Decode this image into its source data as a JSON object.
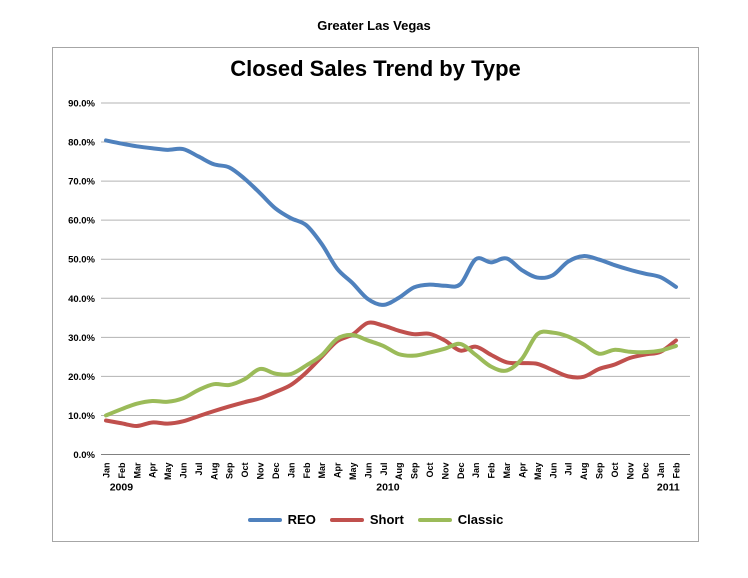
{
  "page": {
    "header": "Greater Las Vegas"
  },
  "chart": {
    "title": "Closed Sales Trend by Type",
    "legend": [
      {
        "label": "REO",
        "color": "#4F81BD"
      },
      {
        "label": "Short",
        "color": "#C0504D"
      },
      {
        "label": "Classic",
        "color": "#9BBB59"
      }
    ]
  },
  "chart_data": {
    "type": "line",
    "title": "Closed Sales Trend by Type",
    "subtitle": "Greater Las Vegas",
    "smoothed": true,
    "grid": true,
    "legend_position": "bottom",
    "ylabel": "",
    "xlabel": "",
    "ylim": [
      0,
      90
    ],
    "y_ticks": [
      "0.0%",
      "10.0%",
      "20.0%",
      "30.0%",
      "40.0%",
      "50.0%",
      "60.0%",
      "70.0%",
      "80.0%",
      "90.0%"
    ],
    "categories": [
      "Jan",
      "Feb",
      "Mar",
      "Apr",
      "May",
      "Jun",
      "Jul",
      "Aug",
      "Sep",
      "Oct",
      "Nov",
      "Dec",
      "Jan",
      "Feb",
      "Mar",
      "Apr",
      "May",
      "Jun",
      "Jul",
      "Aug",
      "Sep",
      "Oct",
      "Nov",
      "Dec",
      "Jan",
      "Feb",
      "Mar",
      "Apr",
      "May",
      "Jun",
      "Jul",
      "Aug",
      "Sep",
      "Oct",
      "Nov",
      "Dec",
      "Jan",
      "Feb"
    ],
    "year_markers": [
      {
        "label": "2009",
        "month_index": 1.0
      },
      {
        "label": "2010",
        "month_index": 18.3
      },
      {
        "label": "2011",
        "month_index": 36.5
      }
    ],
    "series": [
      {
        "name": "REO",
        "color": "#4F81BD",
        "values": [
          80.4,
          79.6,
          78.9,
          78.4,
          78.0,
          78.2,
          76.3,
          74.3,
          73.5,
          70.6,
          66.9,
          63.0,
          60.5,
          58.7,
          53.9,
          47.6,
          43.9,
          39.8,
          38.3,
          40.1,
          42.8,
          43.5,
          43.2,
          43.6,
          50.0,
          49.2,
          50.2,
          47.2,
          45.3,
          45.9,
          49.4,
          50.8,
          49.9,
          48.5,
          47.3,
          46.3,
          45.4,
          42.9
        ]
      },
      {
        "name": "Short",
        "color": "#C0504D",
        "values": [
          8.7,
          8.0,
          7.3,
          8.2,
          7.9,
          8.5,
          9.8,
          11.1,
          12.3,
          13.4,
          14.4,
          16.0,
          17.8,
          21.0,
          25.0,
          29.0,
          30.7,
          33.7,
          33.0,
          31.7,
          30.8,
          30.9,
          29.2,
          26.6,
          27.6,
          25.5,
          23.6,
          23.4,
          23.2,
          21.6,
          20.0,
          19.9,
          21.9,
          23.0,
          24.7,
          25.6,
          26.3,
          29.2
        ]
      },
      {
        "name": "Classic",
        "color": "#9BBB59",
        "values": [
          10.0,
          11.6,
          13.0,
          13.7,
          13.5,
          14.4,
          16.5,
          18.0,
          17.8,
          19.3,
          21.9,
          20.7,
          20.6,
          22.8,
          25.4,
          29.6,
          30.6,
          29.2,
          27.8,
          25.7,
          25.3,
          26.1,
          27.1,
          28.3,
          25.5,
          22.5,
          21.5,
          24.5,
          30.8,
          31.2,
          30.2,
          28.2,
          25.8,
          26.8,
          26.3,
          26.2,
          26.6,
          27.8
        ]
      }
    ]
  }
}
